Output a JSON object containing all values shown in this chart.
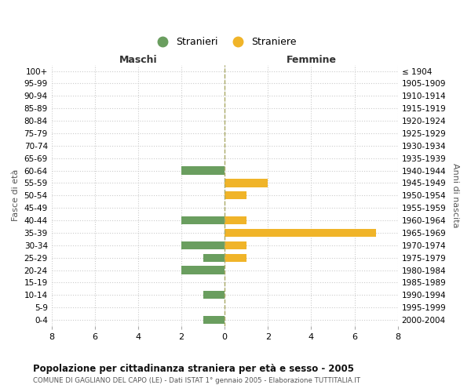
{
  "age_groups": [
    "100+",
    "95-99",
    "90-94",
    "85-89",
    "80-84",
    "75-79",
    "70-74",
    "65-69",
    "60-64",
    "55-59",
    "50-54",
    "45-49",
    "40-44",
    "35-39",
    "30-34",
    "25-29",
    "20-24",
    "15-19",
    "10-14",
    "5-9",
    "0-4"
  ],
  "birth_years": [
    "≤ 1904",
    "1905-1909",
    "1910-1914",
    "1915-1919",
    "1920-1924",
    "1925-1929",
    "1930-1934",
    "1935-1939",
    "1940-1944",
    "1945-1949",
    "1950-1954",
    "1955-1959",
    "1960-1964",
    "1965-1969",
    "1970-1974",
    "1975-1979",
    "1980-1984",
    "1985-1989",
    "1990-1994",
    "1995-1999",
    "2000-2004"
  ],
  "maschi_stranieri": [
    0,
    0,
    0,
    0,
    0,
    0,
    0,
    0,
    2,
    0,
    0,
    0,
    2,
    0,
    2,
    1,
    2,
    0,
    1,
    0,
    1
  ],
  "femmine_straniere": [
    0,
    0,
    0,
    0,
    0,
    0,
    0,
    0,
    0,
    2,
    1,
    0,
    1,
    7,
    1,
    1,
    0,
    0,
    0,
    0,
    0
  ],
  "color_maschi": "#6a9e5f",
  "color_femmine": "#f0b429",
  "xlim": 8,
  "title": "Popolazione per cittadinanza straniera per età e sesso - 2005",
  "subtitle": "COMUNE DI GAGLIANO DEL CAPO (LE) - Dati ISTAT 1° gennaio 2005 - Elaborazione TUTTITALIA.IT",
  "ylabel_left": "Fasce di età",
  "ylabel_right": "Anni di nascita",
  "xlabel_maschi": "Maschi",
  "xlabel_femmine": "Femmine",
  "legend_stranieri": "Stranieri",
  "legend_straniere": "Straniere",
  "background_color": "#ffffff",
  "grid_color": "#cccccc",
  "bar_height": 0.65
}
